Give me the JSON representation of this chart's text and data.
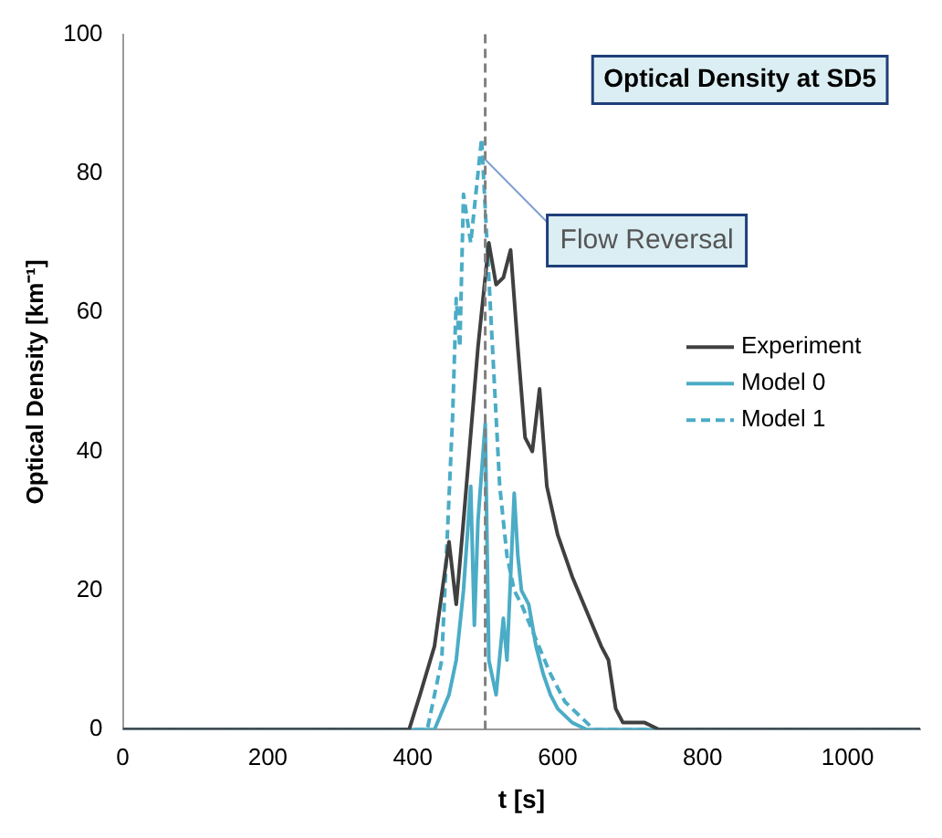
{
  "chart_data": {
    "type": "line",
    "title": "Optical Density at SD5",
    "xlabel": "t [s]",
    "ylabel": "Optical Density [km⁻¹]",
    "xlim": [
      0,
      1100
    ],
    "xticks": [
      0,
      200,
      400,
      600,
      800,
      1000
    ],
    "ylim": [
      0,
      100
    ],
    "yticks": [
      0,
      20,
      40,
      60,
      80,
      100
    ],
    "grid": false,
    "legend": "right",
    "marker": "none",
    "ref_lines": [
      {
        "axis": "x",
        "value": 500,
        "color": "#808080",
        "line_style": "dashed"
      }
    ],
    "annotations": [
      {
        "text": "Flow Reversal",
        "x": 500,
        "y": 82
      }
    ],
    "series": [
      {
        "name": "Experiment",
        "color": "#404040",
        "line_style": "solid",
        "x": [
          0,
          395,
          410,
          430,
          450,
          460,
          470,
          490,
          505,
          515,
          525,
          535,
          545,
          555,
          565,
          575,
          585,
          600,
          620,
          640,
          660,
          670,
          680,
          690,
          720,
          740,
          1100
        ],
        "values": [
          0,
          0,
          5,
          12,
          27,
          18,
          30,
          55,
          70,
          64,
          65,
          69,
          55,
          42,
          40,
          49,
          35,
          28,
          22,
          17,
          12,
          10,
          3,
          1,
          1,
          0,
          0
        ]
      },
      {
        "name": "Model 0",
        "color": "#4bacc6",
        "line_style": "solid",
        "x": [
          0,
          430,
          450,
          460,
          470,
          480,
          485,
          490,
          500,
          505,
          515,
          525,
          530,
          540,
          545,
          550,
          560,
          570,
          580,
          590,
          600,
          620,
          640,
          1100
        ],
        "values": [
          0,
          0,
          5,
          10,
          20,
          35,
          15,
          30,
          44,
          10,
          5,
          16,
          10,
          34,
          25,
          20,
          18,
          12,
          8,
          5,
          3,
          1,
          0,
          0
        ]
      },
      {
        "name": "Model 1",
        "color": "#4bacc6",
        "line_style": "dashed",
        "x": [
          0,
          420,
          440,
          455,
          460,
          465,
          470,
          480,
          490,
          495,
          500,
          510,
          520,
          530,
          540,
          550,
          570,
          590,
          610,
          630,
          650,
          1100
        ],
        "values": [
          0,
          0,
          10,
          45,
          62,
          55,
          77,
          70,
          80,
          85,
          75,
          55,
          35,
          25,
          20,
          18,
          13,
          8,
          4,
          2,
          0,
          0
        ]
      }
    ]
  }
}
